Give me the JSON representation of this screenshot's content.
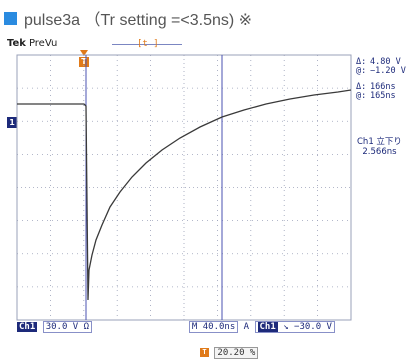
{
  "caption": {
    "icon": "blue-square-icon",
    "text": "pulse3a （Tr setting =<3.5ns) ※"
  },
  "header": {
    "brand": "Tek",
    "mode": "PreVu",
    "trigger_indicator": "[t  ]"
  },
  "markers": {
    "trigger_top": "T",
    "channel_left": "1"
  },
  "measurements": [
    {
      "label": "Δ:",
      "value": "4.80 V"
    },
    {
      "label": "@:",
      "value": "−1.20 V"
    },
    {
      "label": "Δ:",
      "value": "166ns"
    },
    {
      "label": "@:",
      "value": "165ns"
    }
  ],
  "channel_measure": {
    "title": "Ch1 立下り",
    "value": "2.566ns"
  },
  "status_bar": {
    "channel": "Ch1",
    "volts_div": "30.0 V Ω",
    "timebase": "M 40.0ns",
    "acq": "A",
    "trig_channel": "Ch1",
    "trig_slope": "↘",
    "trig_level": "−30.0 V"
  },
  "trigger_position": {
    "icon": "T",
    "value": "20.20 %"
  },
  "colors": {
    "trace": "#3a3a3a",
    "cursor": "#4a52b0",
    "grid": "#9aa0b8",
    "accent": "#e07a1a",
    "channel": "#1d2a7a"
  }
}
